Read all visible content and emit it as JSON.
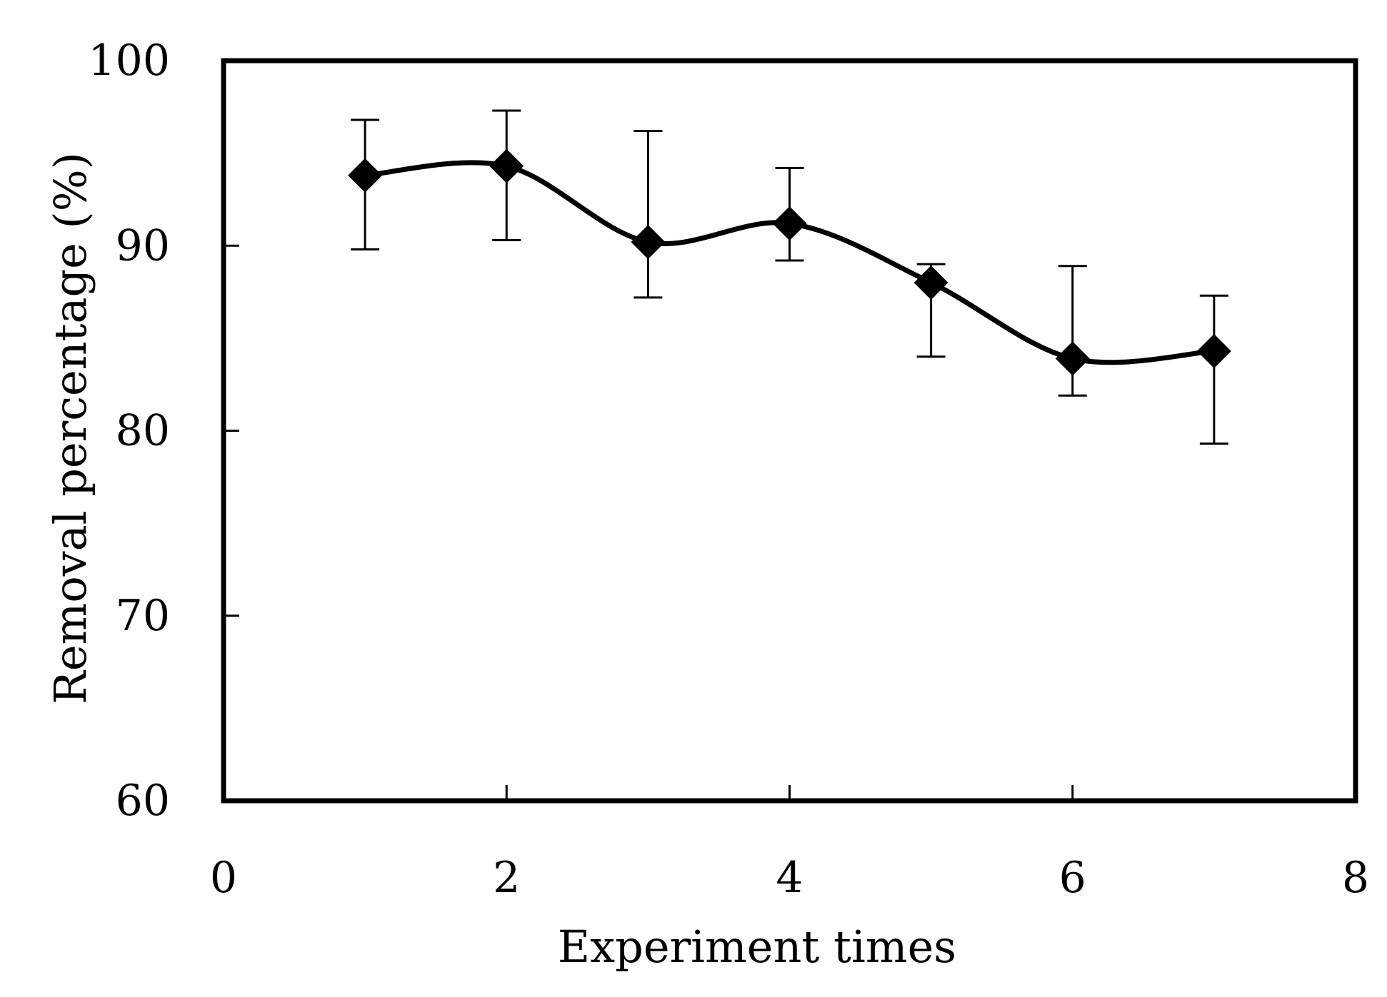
{
  "chart_data": {
    "type": "line",
    "title": "",
    "xlabel": "Experiment times",
    "ylabel": "Removal percentage (%)",
    "xlim": [
      0,
      8
    ],
    "ylim": [
      60,
      100
    ],
    "xticks": [
      "0",
      "2",
      "4",
      "6",
      "8"
    ],
    "yticks": [
      "60",
      "70",
      "80",
      "90",
      "100"
    ],
    "grid": false,
    "legend": "none",
    "marker": "diamond",
    "smooth": true,
    "color": "#000000",
    "series": [
      {
        "name": "Removal percentage",
        "x": [
          1,
          2,
          3,
          4,
          5,
          6,
          7
        ],
        "y": [
          93.8,
          94.3,
          90.2,
          91.2,
          88.0,
          83.9,
          84.3
        ],
        "error_lower": [
          89.8,
          90.3,
          87.2,
          89.2,
          84.0,
          81.9,
          79.3
        ],
        "error_upper": [
          96.8,
          97.3,
          96.2,
          94.2,
          89.0,
          88.9,
          87.3
        ]
      }
    ]
  }
}
